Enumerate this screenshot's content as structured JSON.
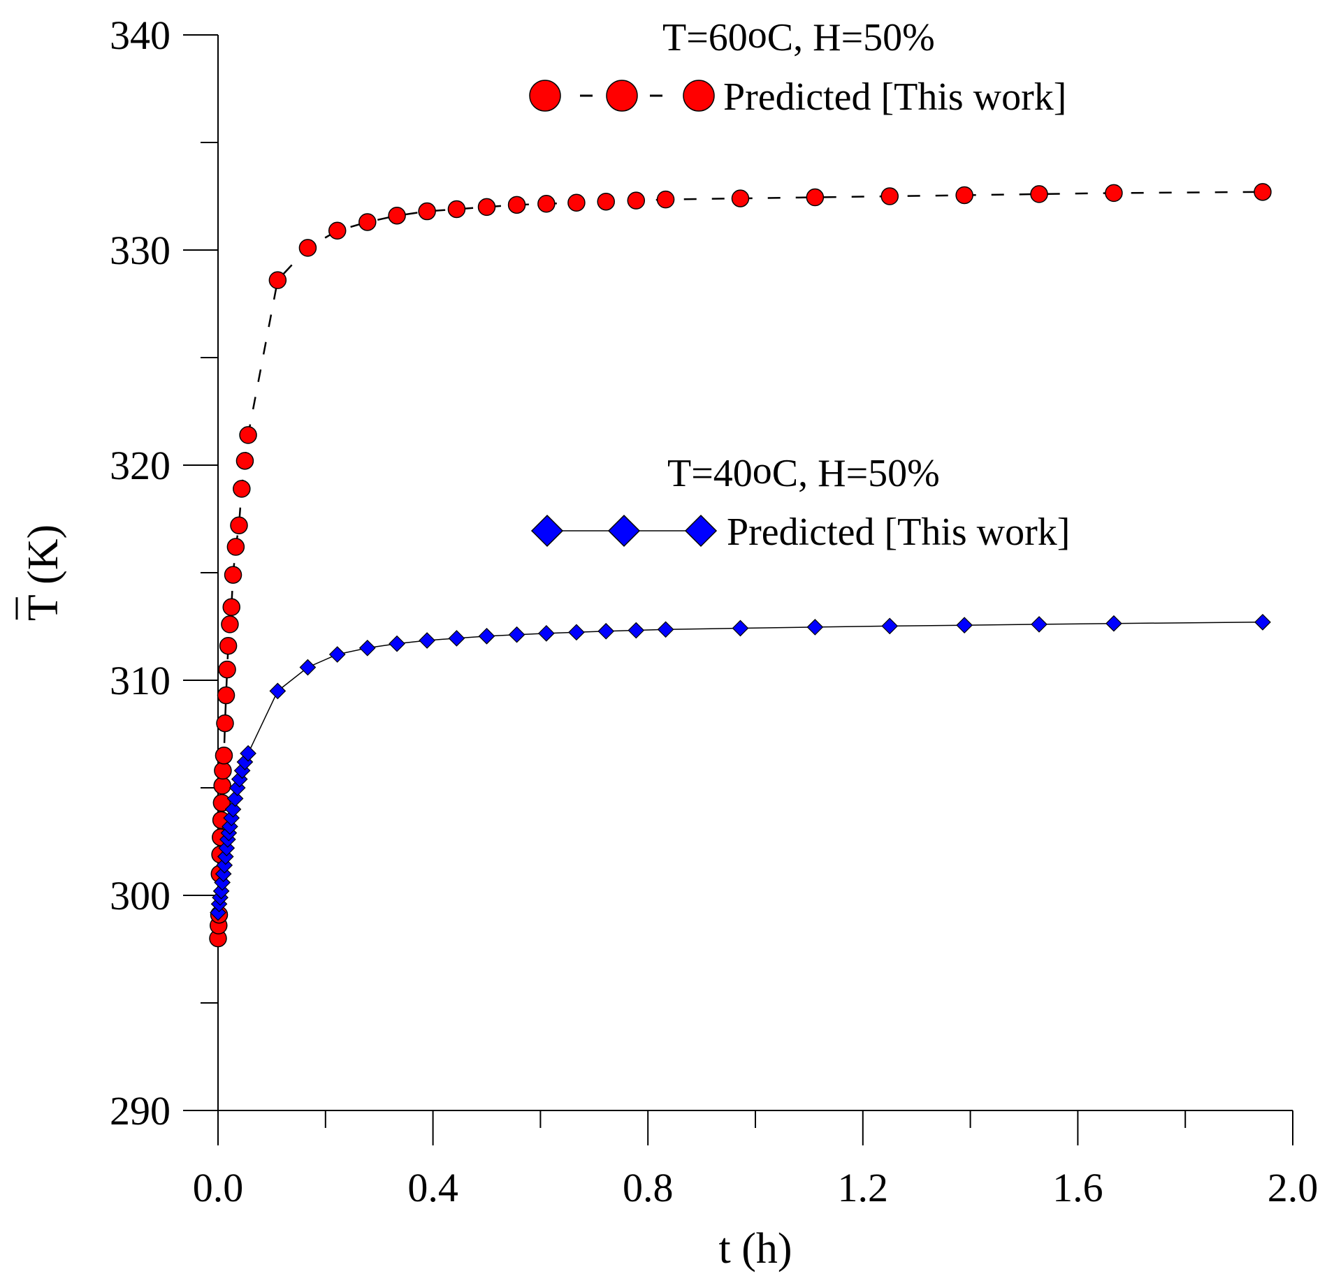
{
  "chart_data": {
    "type": "line",
    "title": "",
    "xlabel": "t (h)",
    "ylabel": "T (K)",
    "ylabel_overbar": true,
    "xlim": [
      0.0,
      2.0
    ],
    "ylim": [
      290,
      340
    ],
    "x_ticks": [
      "0.0",
      "0.4",
      "0.8",
      "1.2",
      "1.6",
      "2.0"
    ],
    "x_tick_values": [
      0.0,
      0.4,
      0.8,
      1.2,
      1.6,
      2.0
    ],
    "x_minor_step": 0.2,
    "y_ticks": [
      "290",
      "300",
      "310",
      "320",
      "330",
      "340"
    ],
    "y_tick_values": [
      290,
      300,
      310,
      320,
      330,
      340
    ],
    "y_minor_step": 5,
    "grid": false,
    "legend_position": "upper-right",
    "series": [
      {
        "name": "Predicted [This work]",
        "condition_label": "T=60",
        "condition_degree": "o",
        "condition_suffix": "C, H=50%",
        "marker": "circle",
        "line": "dashed",
        "color": "#ff0000",
        "x": [
          0.0,
          0.001,
          0.002,
          0.003,
          0.004,
          0.005,
          0.006,
          0.007,
          0.008,
          0.009,
          0.011,
          0.013,
          0.015,
          0.017,
          0.019,
          0.022,
          0.025,
          0.028,
          0.033,
          0.039,
          0.044,
          0.05,
          0.056,
          0.111,
          0.167,
          0.222,
          0.278,
          0.333,
          0.389,
          0.444,
          0.5,
          0.556,
          0.611,
          0.667,
          0.722,
          0.778,
          0.833,
          0.972,
          1.111,
          1.25,
          1.389,
          1.528,
          1.667,
          1.944
        ],
        "values": [
          298.0,
          298.6,
          299.1,
          301.0,
          301.9,
          302.7,
          303.5,
          304.3,
          305.1,
          305.8,
          306.5,
          308.0,
          309.3,
          310.5,
          311.6,
          312.6,
          313.4,
          314.9,
          316.2,
          317.2,
          318.9,
          320.2,
          321.4,
          328.6,
          330.1,
          330.9,
          331.3,
          331.6,
          331.8,
          331.9,
          332.0,
          332.1,
          332.15,
          332.2,
          332.25,
          332.3,
          332.35,
          332.4,
          332.45,
          332.5,
          332.55,
          332.6,
          332.65,
          332.7
        ]
      },
      {
        "name": "Predicted [This work]",
        "condition_label": "T=40",
        "condition_degree": "o",
        "condition_suffix": "C, H=50%",
        "marker": "diamond",
        "line": "solid",
        "color": "#0000ff",
        "x": [
          0.0,
          0.002,
          0.004,
          0.006,
          0.008,
          0.01,
          0.012,
          0.014,
          0.016,
          0.018,
          0.02,
          0.022,
          0.025,
          0.028,
          0.032,
          0.036,
          0.04,
          0.045,
          0.05,
          0.056,
          0.111,
          0.167,
          0.222,
          0.278,
          0.333,
          0.389,
          0.444,
          0.5,
          0.556,
          0.611,
          0.667,
          0.722,
          0.778,
          0.833,
          0.972,
          1.111,
          1.25,
          1.389,
          1.528,
          1.667,
          1.944
        ],
        "values": [
          299.2,
          299.6,
          299.9,
          300.2,
          300.6,
          301.0,
          301.4,
          301.8,
          302.2,
          302.6,
          302.9,
          303.2,
          303.6,
          304.0,
          304.5,
          305.0,
          305.4,
          305.8,
          306.2,
          306.6,
          309.5,
          310.6,
          311.2,
          311.5,
          311.7,
          311.85,
          311.95,
          312.05,
          312.12,
          312.18,
          312.23,
          312.28,
          312.32,
          312.36,
          312.42,
          312.47,
          312.52,
          312.56,
          312.6,
          312.64,
          312.7
        ]
      }
    ]
  }
}
